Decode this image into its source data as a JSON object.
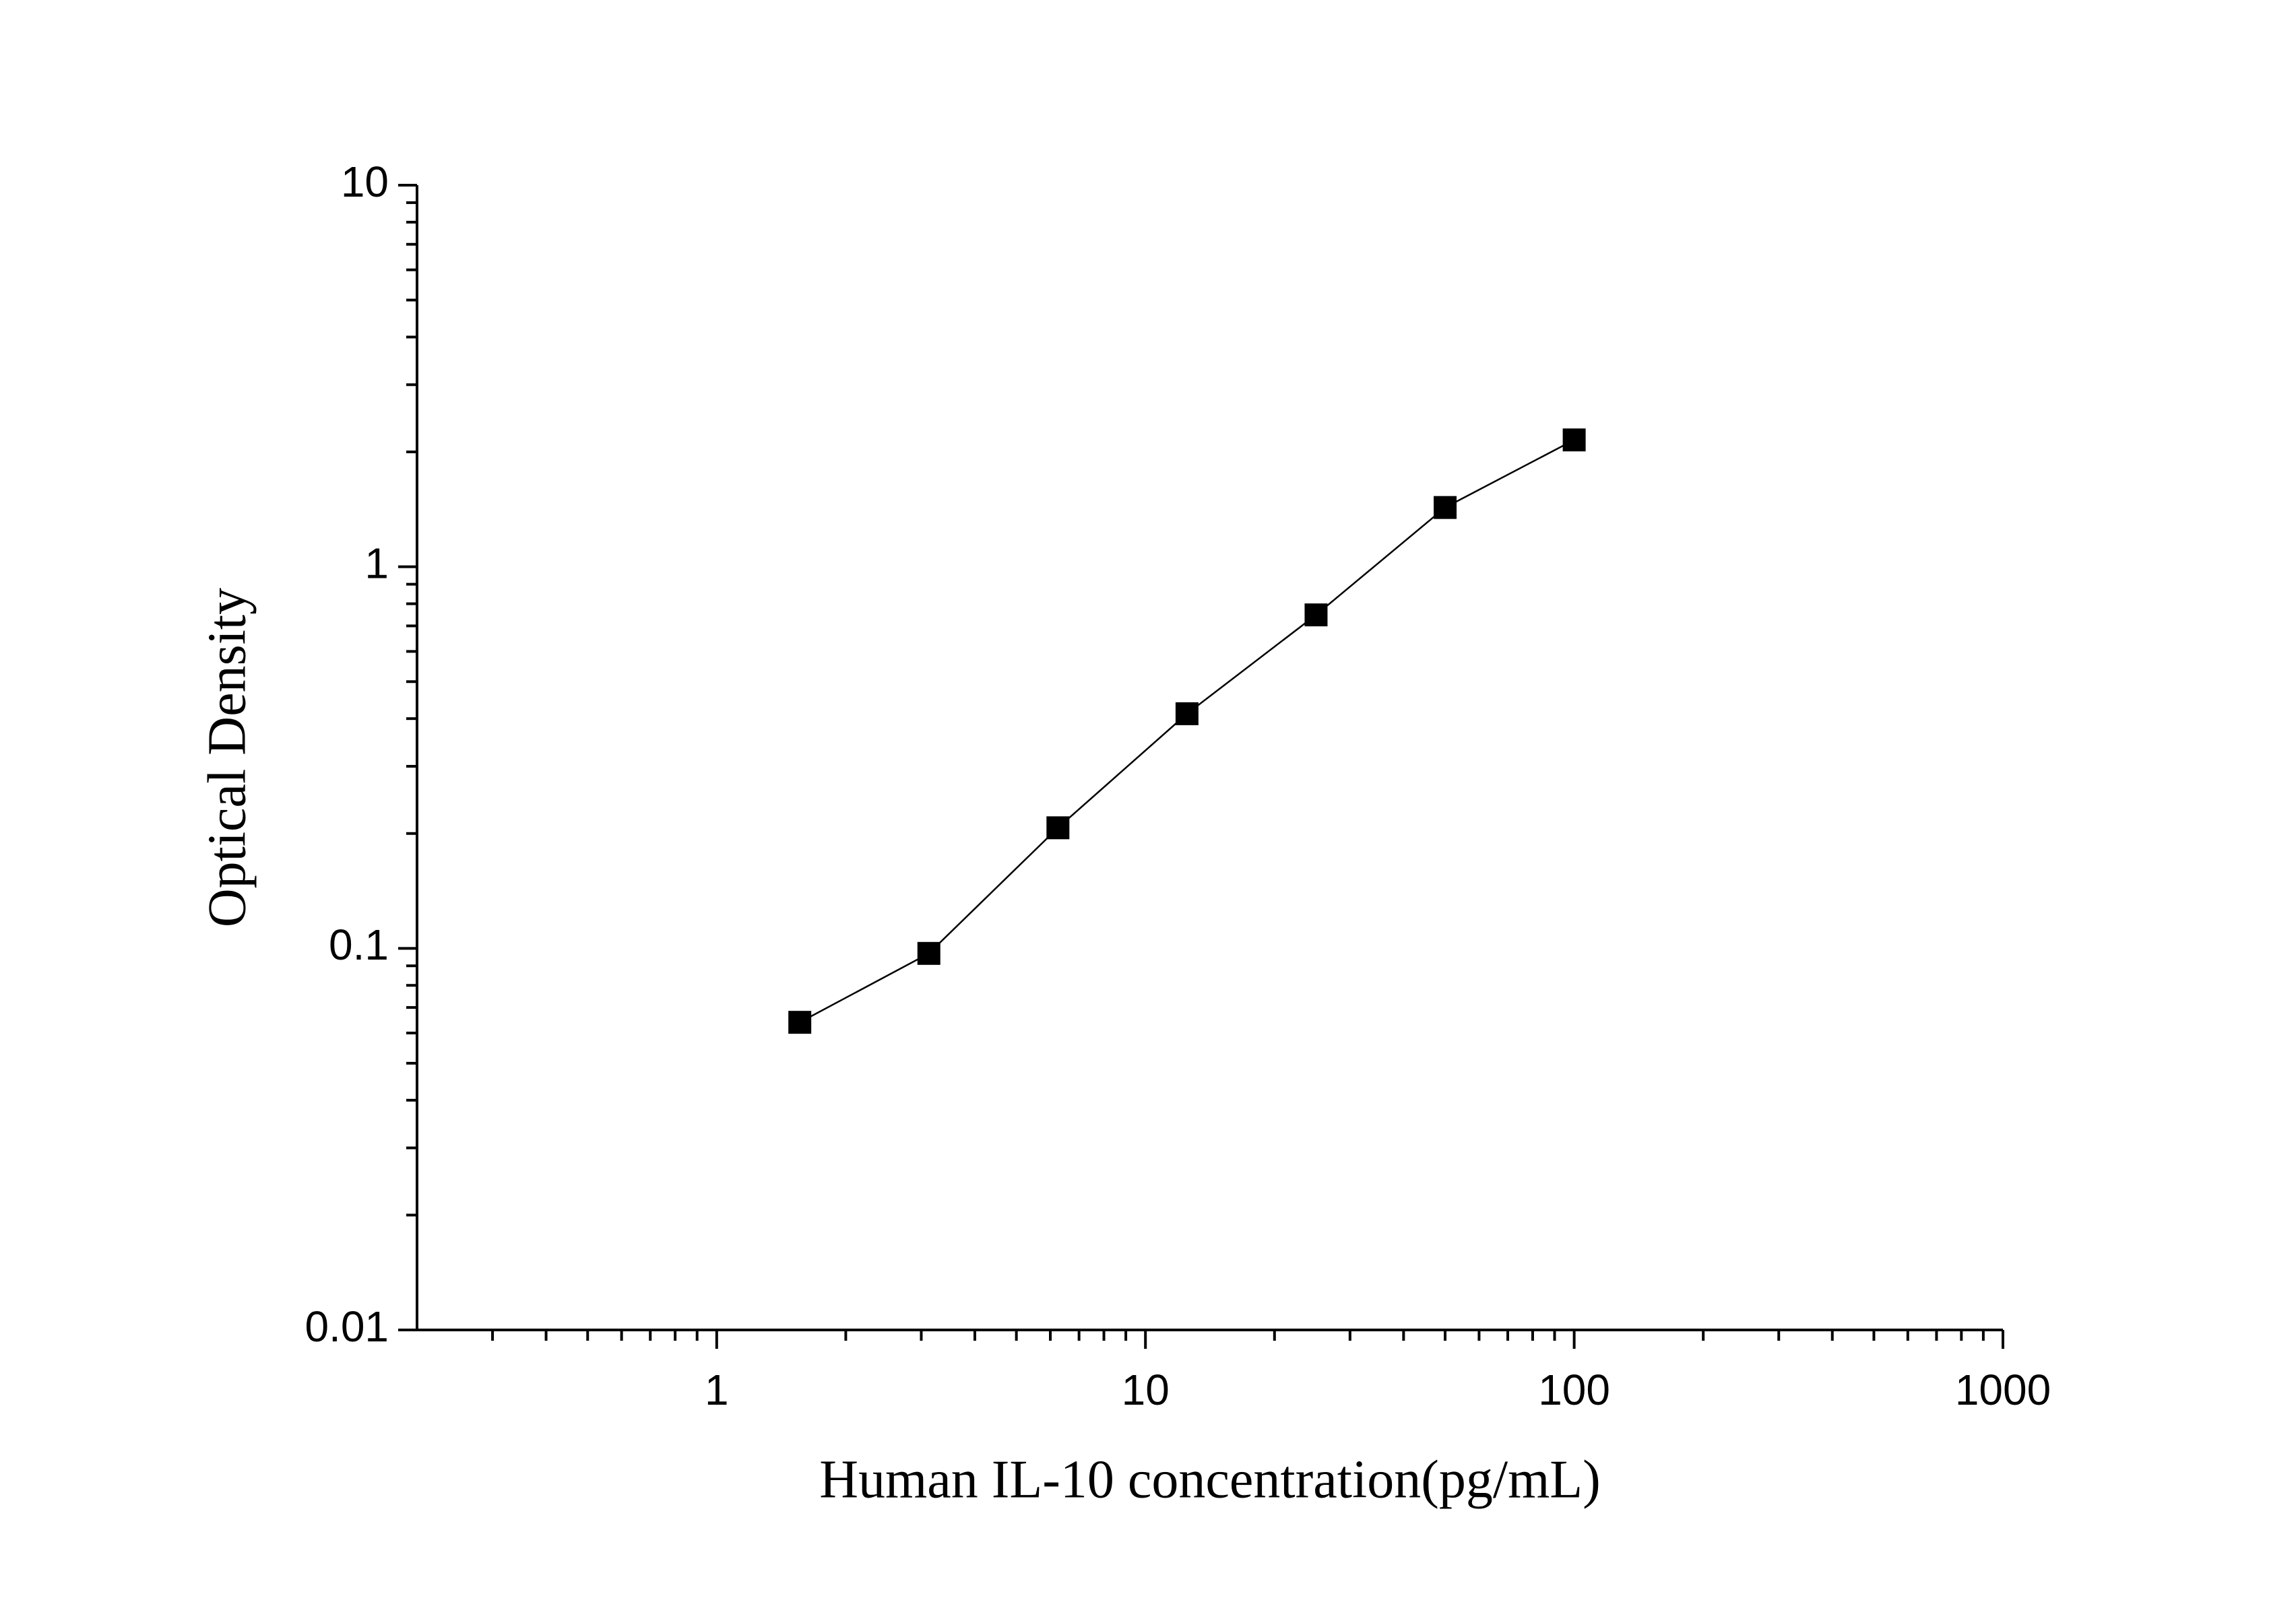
{
  "chart_data": {
    "type": "line",
    "x_label": "Human IL-10 concentration(pg/mL)",
    "y_label": "Optical Density",
    "x": [
      1.5625,
      3.125,
      6.25,
      12.5,
      25,
      50,
      100
    ],
    "series": [
      {
        "color": "#000000",
        "values": [
          0.064,
          0.097,
          0.207,
          0.412,
          0.748,
          1.43,
          2.15
        ]
      }
    ],
    "xscale": "log",
    "yscale": "log",
    "xlim": [
      0.2,
      1000
    ],
    "ylim": [
      0.01,
      10
    ],
    "xticks": [
      1,
      10,
      100,
      1000
    ],
    "yticks": [
      0.01,
      0.1,
      1,
      10
    ],
    "markers": "square",
    "grid": false
  }
}
